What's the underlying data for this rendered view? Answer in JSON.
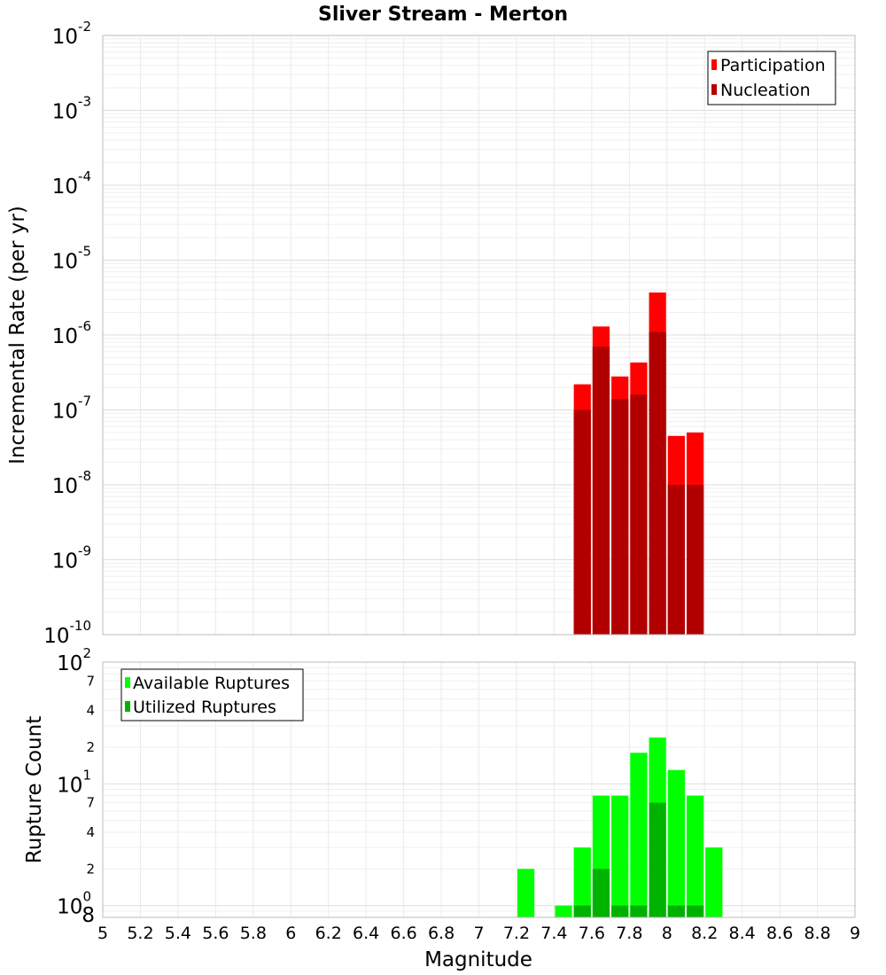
{
  "chart_data": {
    "title": "Sliver Stream - Merton",
    "xlabel": "Magnitude",
    "xlim": [
      5,
      9
    ],
    "xticks": [
      "5",
      "5.2",
      "5.4",
      "5.6",
      "5.8",
      "6",
      "6.2",
      "6.4",
      "6.6",
      "6.8",
      "7",
      "7.2",
      "7.4",
      "7.6",
      "7.8",
      "8",
      "8.2",
      "8.4",
      "8.6",
      "8.8",
      "9"
    ],
    "panels": [
      {
        "type": "bar",
        "ylabel": "Incremental Rate (per yr)",
        "yscale": "log",
        "ylim": [
          1e-10,
          0.01
        ],
        "grid": true,
        "legend_position": "top-right",
        "series": [
          {
            "name": "Participation",
            "color": "#ff0000",
            "x": [
              7.55,
              7.65,
              7.75,
              7.85,
              7.95,
              8.05,
              8.15
            ],
            "values": [
              2.2e-07,
              1.3e-06,
              2.8e-07,
              4.3e-07,
              3.7e-06,
              4.5e-08,
              5e-08
            ]
          },
          {
            "name": "Nucleation",
            "color": "#b20000",
            "x": [
              7.55,
              7.65,
              7.75,
              7.85,
              7.95,
              8.05,
              8.15
            ],
            "values": [
              1e-07,
              7e-07,
              1.4e-07,
              1.6e-07,
              1.1e-06,
              1e-08,
              1e-08
            ]
          }
        ]
      },
      {
        "type": "bar",
        "ylabel": "Rupture Count",
        "yscale": "log",
        "ylim": [
          0.8,
          100
        ],
        "grid": true,
        "legend_position": "top-left",
        "series": [
          {
            "name": "Available Ruptures",
            "color": "#00ff00",
            "x": [
              7.25,
              7.45,
              7.55,
              7.65,
              7.75,
              7.85,
              7.95,
              8.05,
              8.15,
              8.25
            ],
            "values": [
              2,
              1,
              3,
              8,
              8,
              18,
              24,
              13,
              8,
              3
            ]
          },
          {
            "name": "Utilized Ruptures",
            "color": "#00b200",
            "x": [
              7.55,
              7.65,
              7.75,
              7.85,
              7.95,
              8.05,
              8.15
            ],
            "values": [
              1,
              2,
              1,
              1,
              7,
              1,
              1
            ]
          }
        ]
      }
    ]
  }
}
